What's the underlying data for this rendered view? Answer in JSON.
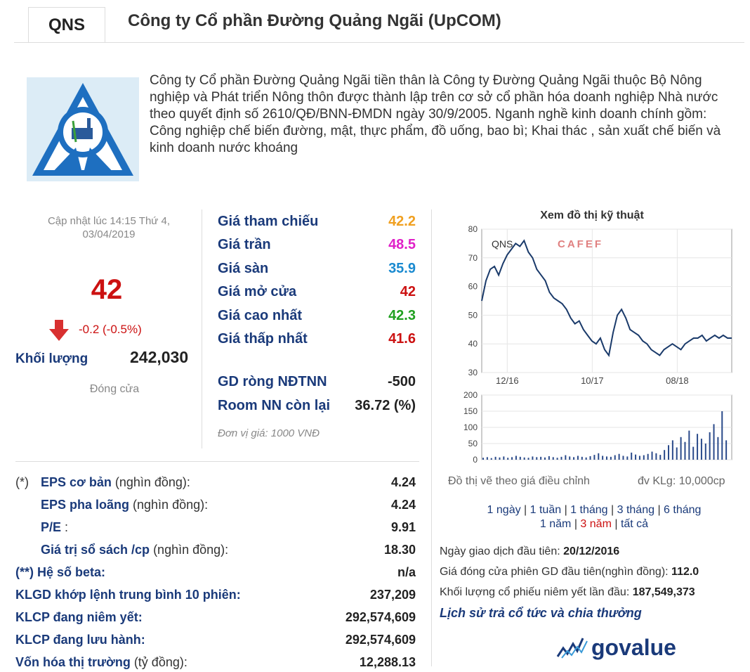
{
  "header": {
    "ticker": "QNS",
    "company_name": "Công ty Cổ phần Đường Quảng Ngãi (UpCOM)"
  },
  "logo": {
    "name": "qns-logo-icon"
  },
  "description": "Công ty Cổ phần Đường Quảng Ngãi tiền thân là Công ty Đường Quảng Ngãi thuộc Bộ Nông nghiệp và Phát triển Nông thôn được thành lập trên cơ sở cổ phần hóa doanh nghiệp Nhà nước theo quyết định số 2610/QĐ/BNN-ĐMDN ngày 30/9/2005. Nganh nghề kinh doanh chính gồm: Công nghiệp chế biến đường, mật, thực phẩm, đồ uống, bao bì; Khai thác , sản xuất chế biến và kinh doanh nước khoáng",
  "quote": {
    "updated": "Cập nhật lúc 14:15 Thứ 4, 03/04/2019",
    "price": "42",
    "change": "-0.2 (-0.5%)",
    "volume_label": "Khối lượng",
    "volume": "242,030",
    "status": "Đóng cửa",
    "down_color": "#cc1111"
  },
  "price_table": [
    {
      "label": "Giá tham chiếu",
      "value": "42.2",
      "color": "#f0a020"
    },
    {
      "label": "Giá trần",
      "value": "48.5",
      "color": "#e020c8"
    },
    {
      "label": "Giá sàn",
      "value": "35.9",
      "color": "#1a8ad0"
    },
    {
      "label": "Giá mở cửa",
      "value": "42",
      "color": "#cc1111"
    },
    {
      "label": "Giá cao nhất",
      "value": "42.3",
      "color": "#20a020"
    },
    {
      "label": "Giá thấp nhất",
      "value": "41.6",
      "color": "#cc1111"
    }
  ],
  "foreign": [
    {
      "label": "GD ròng NĐTNN",
      "value": "-500"
    },
    {
      "label": "Room NN còn lại",
      "value": "36.72 (%)"
    }
  ],
  "unit_note": "Đơn vị giá: 1000 VNĐ",
  "stats": [
    {
      "prefix": "(*)",
      "bold": "EPS cơ bản",
      "rest": " (nghìn đồng):",
      "value": "4.24"
    },
    {
      "prefix": "",
      "bold": "EPS pha loãng",
      "rest": " (nghìn đồng):",
      "value": "4.24"
    },
    {
      "prefix": "",
      "bold": "P/E",
      "rest": " :",
      "value": "9.91"
    },
    {
      "prefix": "",
      "bold": "Giá trị sổ sách /cp",
      "rest": " (nghìn đồng):",
      "value": "18.30"
    },
    {
      "prefix": "",
      "bold": "(**) Hệ số beta:",
      "rest": "",
      "value": "n/a"
    },
    {
      "prefix": "",
      "bold": "KLGD khớp lệnh trung bình 10 phiên:",
      "rest": "",
      "value": "237,209"
    },
    {
      "prefix": "",
      "bold": "KLCP đang niêm yết:",
      "rest": "",
      "value": "292,574,609"
    },
    {
      "prefix": "",
      "bold": "KLCP đang lưu hành:",
      "rest": "",
      "value": "292,574,609"
    },
    {
      "prefix": "",
      "bold": "Vốn hóa thị trường",
      "rest": " (tỷ đồng):",
      "value": "12,288.13"
    }
  ],
  "chart": {
    "title": "Xem đồ thị kỹ thuật",
    "watermark": "CAFEF",
    "series_label": "QNS",
    "note": "Đồ thị vẽ theo giá điều chỉnh",
    "volume_unit": "đv KLg: 10,000cp",
    "periods_line1": [
      "1 ngày",
      "1 tuần",
      "1 tháng",
      "3 tháng",
      "6 tháng"
    ],
    "periods_line2": [
      "1 năm",
      "3 năm",
      "tất cả"
    ],
    "active_period": "3 năm"
  },
  "chart_data": {
    "type": "line",
    "price_axis": {
      "ylim": [
        30,
        80
      ],
      "ticks": [
        "80",
        "70",
        "60",
        "50",
        "40",
        "30"
      ]
    },
    "x_ticks": [
      "12/16",
      "10/17",
      "08/18"
    ],
    "price": [
      55,
      62,
      66,
      67,
      64,
      68,
      71,
      73,
      75,
      74,
      76,
      72,
      70,
      66,
      64,
      62,
      58,
      56,
      55,
      54,
      52,
      49,
      47,
      48,
      45,
      43,
      41,
      40,
      42,
      38,
      36,
      44,
      50,
      52,
      49,
      45,
      44,
      43,
      41,
      40,
      38,
      37,
      36,
      38,
      39,
      40,
      39,
      38,
      40,
      41,
      42,
      42,
      43,
      41,
      42,
      43,
      42,
      43,
      42,
      42
    ],
    "volume_axis": {
      "ylim": [
        0,
        200
      ],
      "ticks": [
        "200",
        "150",
        "100",
        "50",
        "0"
      ]
    },
    "volume": [
      6,
      8,
      5,
      9,
      7,
      10,
      6,
      8,
      12,
      9,
      7,
      6,
      10,
      8,
      9,
      7,
      11,
      8,
      6,
      9,
      14,
      10,
      8,
      12,
      9,
      7,
      11,
      15,
      20,
      12,
      10,
      9,
      14,
      18,
      12,
      10,
      22,
      16,
      12,
      14,
      18,
      25,
      20,
      15,
      30,
      45,
      60,
      38,
      70,
      55,
      90,
      40,
      80,
      65,
      50,
      85,
      110,
      70,
      150,
      60
    ]
  },
  "listing_info": [
    {
      "label": "Ngày giao dịch đầu tiên: ",
      "value": "20/12/2016"
    },
    {
      "label": "Giá đóng cửa phiên GD đầu tiên(nghìn đồng): ",
      "value": "112.0"
    },
    {
      "label": "Khối lượng cổ phiếu niêm yết lần đầu: ",
      "value": "187,549,373"
    }
  ],
  "history_link": "Lịch sử trả cổ tức và chia thưởng",
  "brand": {
    "name": "govalue",
    "color": "#1a3a7a"
  }
}
